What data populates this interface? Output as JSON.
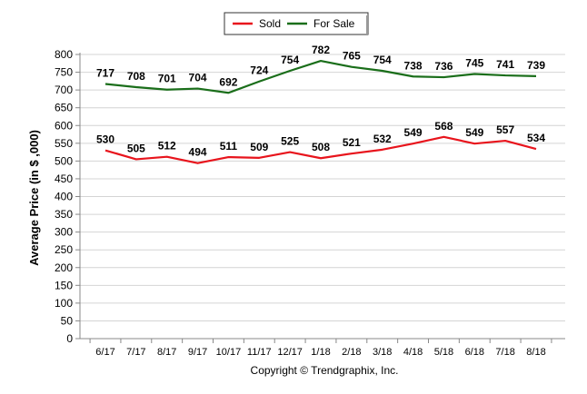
{
  "chart_data": {
    "type": "line",
    "categories": [
      "6/17",
      "7/17",
      "8/17",
      "9/17",
      "10/17",
      "11/17",
      "12/17",
      "1/18",
      "2/18",
      "3/18",
      "4/18",
      "5/18",
      "6/18",
      "7/18",
      "8/18"
    ],
    "series": [
      {
        "name": "Sold",
        "color": "#e8141c",
        "values": [
          530,
          505,
          512,
          494,
          511,
          509,
          525,
          508,
          521,
          532,
          549,
          568,
          549,
          557,
          534
        ]
      },
      {
        "name": "For Sale",
        "color": "#1a6e1a",
        "values": [
          717,
          708,
          701,
          704,
          692,
          724,
          754,
          782,
          765,
          754,
          738,
          736,
          745,
          741,
          739
        ]
      }
    ],
    "ylabel": "Average Price (in $ ,000)",
    "ylim": [
      0,
      800
    ],
    "ytick_step": 50,
    "grid": true,
    "legend": "top-center",
    "credit": "Copyright © Trendgraphix, Inc."
  }
}
